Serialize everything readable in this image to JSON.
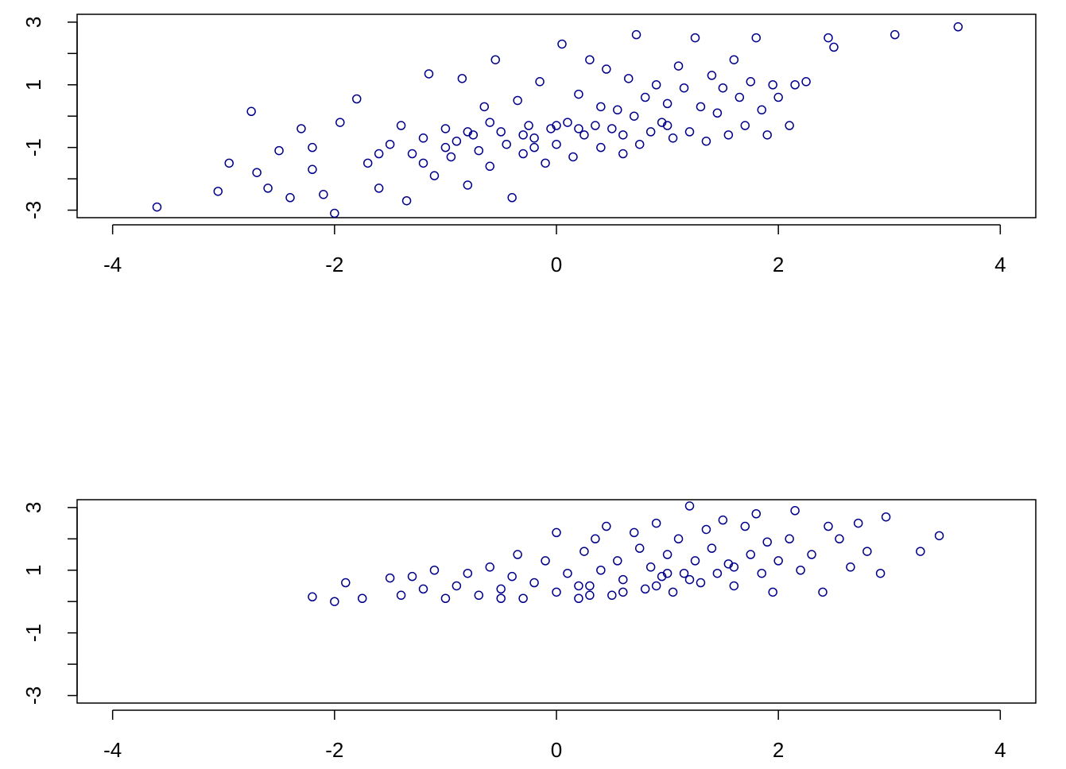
{
  "chart_data": [
    {
      "type": "scatter",
      "color": "#00008b",
      "xlim": [
        -4.32,
        4.32
      ],
      "ylim": [
        -3.24,
        3.25
      ],
      "xticks": [
        -4,
        -2,
        0,
        2,
        4
      ],
      "yticks": [
        -3,
        {
          "value": -2,
          "label": null
        },
        -1,
        {
          "value": 0,
          "label": null
        },
        1,
        {
          "value": 2,
          "label": null
        },
        3
      ],
      "x": [
        -3.6,
        -3.05,
        -2.95,
        -2.75,
        -2.7,
        -2.6,
        -2.5,
        -2.4,
        -2.3,
        -2.2,
        -2.1,
        -2.0,
        -1.95,
        -1.8,
        -1.7,
        -1.6,
        -1.5,
        -1.4,
        -1.35,
        -1.3,
        -1.2,
        -1.15,
        -1.1,
        -1.0,
        -0.95,
        -0.9,
        -0.85,
        -0.8,
        -0.75,
        -0.7,
        -0.65,
        -0.6,
        -0.55,
        -0.5,
        -0.45,
        -0.4,
        -0.35,
        -0.3,
        -0.25,
        -0.2,
        -0.15,
        -0.1,
        -0.05,
        0,
        0.05,
        0.1,
        0.15,
        0.2,
        0.25,
        0.3,
        0.35,
        0.4,
        0.45,
        0.5,
        0.55,
        0.6,
        0.65,
        0.7,
        0.72,
        0.75,
        0.8,
        0.85,
        0.9,
        0.95,
        1.0,
        1.05,
        1.1,
        1.15,
        1.2,
        1.25,
        1.3,
        1.35,
        1.4,
        1.45,
        1.5,
        1.55,
        1.6,
        1.65,
        1.7,
        1.75,
        1.8,
        1.85,
        1.9,
        1.95,
        2.0,
        2.1,
        2.15,
        2.25,
        2.45,
        2.5,
        3.05,
        3.62,
        -1.0,
        -0.6,
        -0.2,
        0.2,
        -1.6,
        -2.2,
        0.4,
        1.0,
        -1.2,
        -0.8,
        0.6,
        -0.3,
        0.0
      ],
      "values": [
        -2.9,
        -2.4,
        -1.5,
        0.15,
        -1.8,
        -2.3,
        -1.1,
        -2.6,
        -0.4,
        -1.7,
        -2.5,
        -3.1,
        -0.2,
        0.55,
        -1.5,
        -2.3,
        -0.9,
        -0.3,
        -2.7,
        -1.2,
        -0.7,
        1.35,
        -1.9,
        -0.4,
        -1.3,
        -0.8,
        1.2,
        -2.2,
        -0.6,
        -1.1,
        0.3,
        -1.6,
        1.8,
        -0.5,
        -0.9,
        -2.6,
        0.5,
        -1.2,
        -0.3,
        -0.7,
        1.1,
        -1.5,
        -0.4,
        -0.9,
        2.3,
        -0.2,
        -1.3,
        0.7,
        -0.6,
        1.8,
        -0.3,
        -1.0,
        1.5,
        -0.4,
        0.2,
        -1.2,
        1.2,
        0.0,
        2.6,
        -0.9,
        0.6,
        -0.5,
        1.0,
        -0.2,
        0.4,
        -0.7,
        1.6,
        0.9,
        -0.5,
        2.5,
        0.3,
        -0.8,
        1.3,
        0.1,
        0.9,
        -0.6,
        1.8,
        0.6,
        -0.3,
        1.1,
        2.5,
        0.2,
        -0.6,
        1.0,
        0.6,
        -0.3,
        1.0,
        1.1,
        2.5,
        2.2,
        2.6,
        2.85,
        -1.0,
        -0.2,
        -1.0,
        -0.4,
        -1.2,
        -1.0,
        0.3,
        -0.3,
        -1.5,
        -0.5,
        -0.6,
        -0.6,
        -0.3
      ]
    },
    {
      "type": "scatter",
      "color": "#00008b",
      "xlim": [
        -4.32,
        4.32
      ],
      "ylim": [
        -3.24,
        3.25
      ],
      "xticks": [
        -4,
        -2,
        0,
        2,
        4
      ],
      "yticks": [
        -3,
        {
          "value": -2,
          "label": null
        },
        -1,
        {
          "value": 0,
          "label": null
        },
        1,
        {
          "value": 2,
          "label": null
        },
        3
      ],
      "x": [
        -2.2,
        -2.0,
        -1.9,
        -1.75,
        -1.5,
        -1.4,
        -1.3,
        -1.2,
        -1.1,
        -1.0,
        -0.9,
        -0.8,
        -0.7,
        -0.6,
        -0.5,
        -0.4,
        -0.35,
        -0.3,
        -0.2,
        -0.1,
        0,
        0.0,
        0.1,
        0.2,
        0.25,
        0.3,
        0.35,
        0.4,
        0.45,
        0.5,
        0.55,
        0.6,
        0.7,
        0.75,
        0.8,
        0.85,
        0.9,
        0.95,
        1.0,
        1.05,
        1.1,
        1.15,
        1.2,
        1.25,
        1.3,
        1.35,
        1.4,
        1.45,
        1.5,
        1.55,
        1.6,
        1.7,
        1.75,
        1.8,
        1.85,
        1.9,
        1.95,
        2.0,
        2.1,
        2.15,
        2.2,
        2.3,
        2.4,
        2.45,
        2.55,
        2.65,
        2.72,
        2.8,
        2.92,
        2.97,
        3.28,
        3.45,
        0.6,
        0.9,
        1.2,
        0.3,
        -0.5,
        1.0,
        1.6,
        0.2
      ],
      "values": [
        0.15,
        0.0,
        0.6,
        0.1,
        0.75,
        0.2,
        0.8,
        0.4,
        1.0,
        0.1,
        0.5,
        0.9,
        0.2,
        1.1,
        0.4,
        0.8,
        1.5,
        0.1,
        0.6,
        1.3,
        0.3,
        2.2,
        0.9,
        0.1,
        1.6,
        0.5,
        2.0,
        1.0,
        2.4,
        0.2,
        1.3,
        0.7,
        2.2,
        1.7,
        0.4,
        1.1,
        2.5,
        0.8,
        1.5,
        0.3,
        2.0,
        0.9,
        3.05,
        1.3,
        0.6,
        2.3,
        1.7,
        0.9,
        2.6,
        1.2,
        0.5,
        2.4,
        1.5,
        2.8,
        0.9,
        1.9,
        0.3,
        1.3,
        2.0,
        2.9,
        1.0,
        1.5,
        0.3,
        2.4,
        2.0,
        1.1,
        2.5,
        1.6,
        0.9,
        2.7,
        1.6,
        2.1,
        0.3,
        0.5,
        0.7,
        0.2,
        0.1,
        0.9,
        1.1,
        0.5
      ]
    }
  ]
}
